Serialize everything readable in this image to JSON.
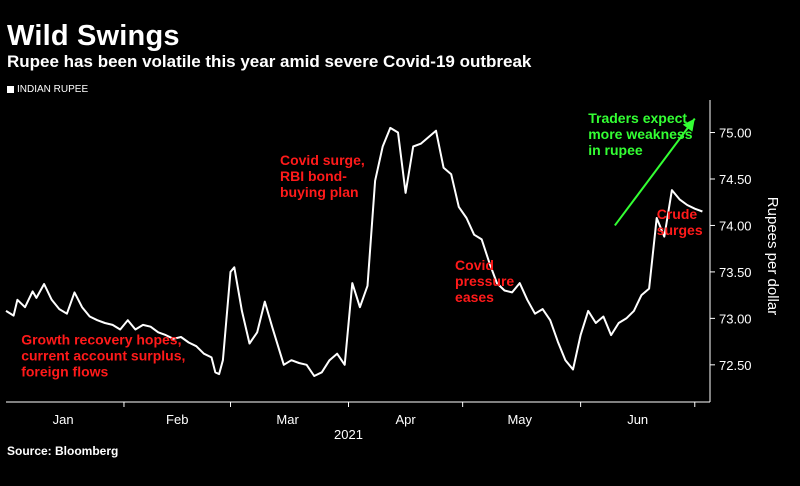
{
  "header": {
    "title": "Wild Swings",
    "subtitle": "Rupee has been volatile this year amid severe Covid-19 outbreak"
  },
  "source": "Source: Bloomberg",
  "colors": {
    "background": "#000000",
    "line": "#ffffff",
    "annotation_red": "#ff1a1a",
    "annotation_green": "#33ff33"
  },
  "chart_data": {
    "type": "line",
    "title": "Wild Swings",
    "subtitle": "Rupee has been volatile this year amid severe Covid-19 outbreak",
    "ylabel": "Rupees per dollar",
    "ylim": [
      72.1,
      75.35
    ],
    "y_ticks": [
      "72.50",
      "73.00",
      "73.50",
      "74.00",
      "74.50",
      "75.00"
    ],
    "x_range": [
      "2021-01-01",
      "2021-07-05"
    ],
    "x_ticks": [
      {
        "date": "2021-01-16",
        "label": "Jan"
      },
      {
        "date": "2021-02-15",
        "label": "Feb"
      },
      {
        "date": "2021-03-16",
        "label": "Mar"
      },
      {
        "date": "2021-04-16",
        "label": "Apr"
      },
      {
        "date": "2021-05-16",
        "label": "May"
      },
      {
        "date": "2021-06-16",
        "label": "Jun"
      }
    ],
    "x_sublabel": "2021",
    "legend": {
      "position": "top-left",
      "entries": [
        "INDIAN RUPEE"
      ]
    },
    "grid": false,
    "series": [
      {
        "name": "INDIAN RUPEE",
        "x": [
          "2021-01-01",
          "2021-01-03",
          "2021-01-04",
          "2021-01-06",
          "2021-01-08",
          "2021-01-09",
          "2021-01-11",
          "2021-01-13",
          "2021-01-15",
          "2021-01-17",
          "2021-01-19",
          "2021-01-21",
          "2021-01-23",
          "2021-01-25",
          "2021-01-27",
          "2021-01-29",
          "2021-01-31",
          "2021-02-02",
          "2021-02-04",
          "2021-02-06",
          "2021-02-08",
          "2021-02-10",
          "2021-02-12",
          "2021-02-14",
          "2021-02-16",
          "2021-02-18",
          "2021-02-20",
          "2021-02-22",
          "2021-02-24",
          "2021-02-25",
          "2021-02-26",
          "2021-02-27",
          "2021-03-01",
          "2021-03-02",
          "2021-03-04",
          "2021-03-06",
          "2021-03-08",
          "2021-03-10",
          "2021-03-12",
          "2021-03-15",
          "2021-03-17",
          "2021-03-19",
          "2021-03-21",
          "2021-03-23",
          "2021-03-25",
          "2021-03-27",
          "2021-03-29",
          "2021-03-31",
          "2021-04-02",
          "2021-04-04",
          "2021-04-06",
          "2021-04-08",
          "2021-04-10",
          "2021-04-12",
          "2021-04-14",
          "2021-04-16",
          "2021-04-18",
          "2021-04-20",
          "2021-04-22",
          "2021-04-24",
          "2021-04-26",
          "2021-04-28",
          "2021-04-30",
          "2021-05-02",
          "2021-05-04",
          "2021-05-06",
          "2021-05-08",
          "2021-05-10",
          "2021-05-12",
          "2021-05-14",
          "2021-05-16",
          "2021-05-18",
          "2021-05-20",
          "2021-05-22",
          "2021-05-24",
          "2021-05-26",
          "2021-05-28",
          "2021-05-30",
          "2021-06-01",
          "2021-06-03",
          "2021-06-05",
          "2021-06-07",
          "2021-06-09",
          "2021-06-11",
          "2021-06-13",
          "2021-06-15",
          "2021-06-17",
          "2021-06-19",
          "2021-06-21",
          "2021-06-23",
          "2021-06-25",
          "2021-06-27",
          "2021-06-29",
          "2021-07-01",
          "2021-07-03"
        ],
        "y": [
          73.08,
          73.03,
          73.2,
          73.12,
          73.29,
          73.22,
          73.37,
          73.2,
          73.1,
          73.05,
          73.28,
          73.12,
          73.02,
          72.98,
          72.95,
          72.93,
          72.88,
          72.98,
          72.88,
          72.93,
          72.91,
          72.85,
          72.82,
          72.78,
          72.8,
          72.74,
          72.7,
          72.62,
          72.58,
          72.42,
          72.4,
          72.55,
          73.5,
          73.55,
          73.08,
          72.73,
          72.85,
          73.18,
          72.9,
          72.5,
          72.55,
          72.52,
          72.5,
          72.38,
          72.42,
          72.55,
          72.62,
          72.5,
          73.38,
          73.12,
          73.35,
          74.48,
          74.85,
          75.05,
          75.0,
          74.35,
          74.85,
          74.88,
          74.95,
          75.02,
          74.62,
          74.55,
          74.2,
          74.08,
          73.9,
          73.85,
          73.6,
          73.38,
          73.3,
          73.28,
          73.38,
          73.2,
          73.05,
          73.1,
          72.98,
          72.75,
          72.55,
          72.45,
          72.82,
          73.08,
          72.95,
          73.02,
          72.82,
          72.95,
          73.0,
          73.08,
          73.25,
          73.32,
          74.08,
          73.88,
          74.38,
          74.28,
          74.22,
          74.18,
          74.15
        ]
      }
    ],
    "annotations": [
      {
        "text": [
          "Growth recovery hopes,",
          "current account surplus,",
          "foreign flows"
        ],
        "color": "red",
        "date": "2021-01-05",
        "value": 72.72
      },
      {
        "text": [
          "Covid surge,",
          "RBI bond-",
          "buying plan"
        ],
        "color": "red",
        "date": "2021-03-14",
        "value": 74.65
      },
      {
        "text": [
          "Covid",
          "pressure",
          "eases"
        ],
        "color": "red",
        "date": "2021-04-29",
        "value": 73.52
      },
      {
        "text": [
          "Crude",
          "surges"
        ],
        "color": "red",
        "date": "2021-06-21",
        "value": 74.07
      },
      {
        "text": [
          "Traders expect",
          "more weakness",
          "in rupee"
        ],
        "color": "green",
        "date": "2021-06-03",
        "value": 75.1
      }
    ],
    "trend_arrow": {
      "from": [
        "2021-06-10",
        74.0
      ],
      "to": [
        "2021-07-01",
        75.15
      ],
      "color": "green"
    }
  }
}
